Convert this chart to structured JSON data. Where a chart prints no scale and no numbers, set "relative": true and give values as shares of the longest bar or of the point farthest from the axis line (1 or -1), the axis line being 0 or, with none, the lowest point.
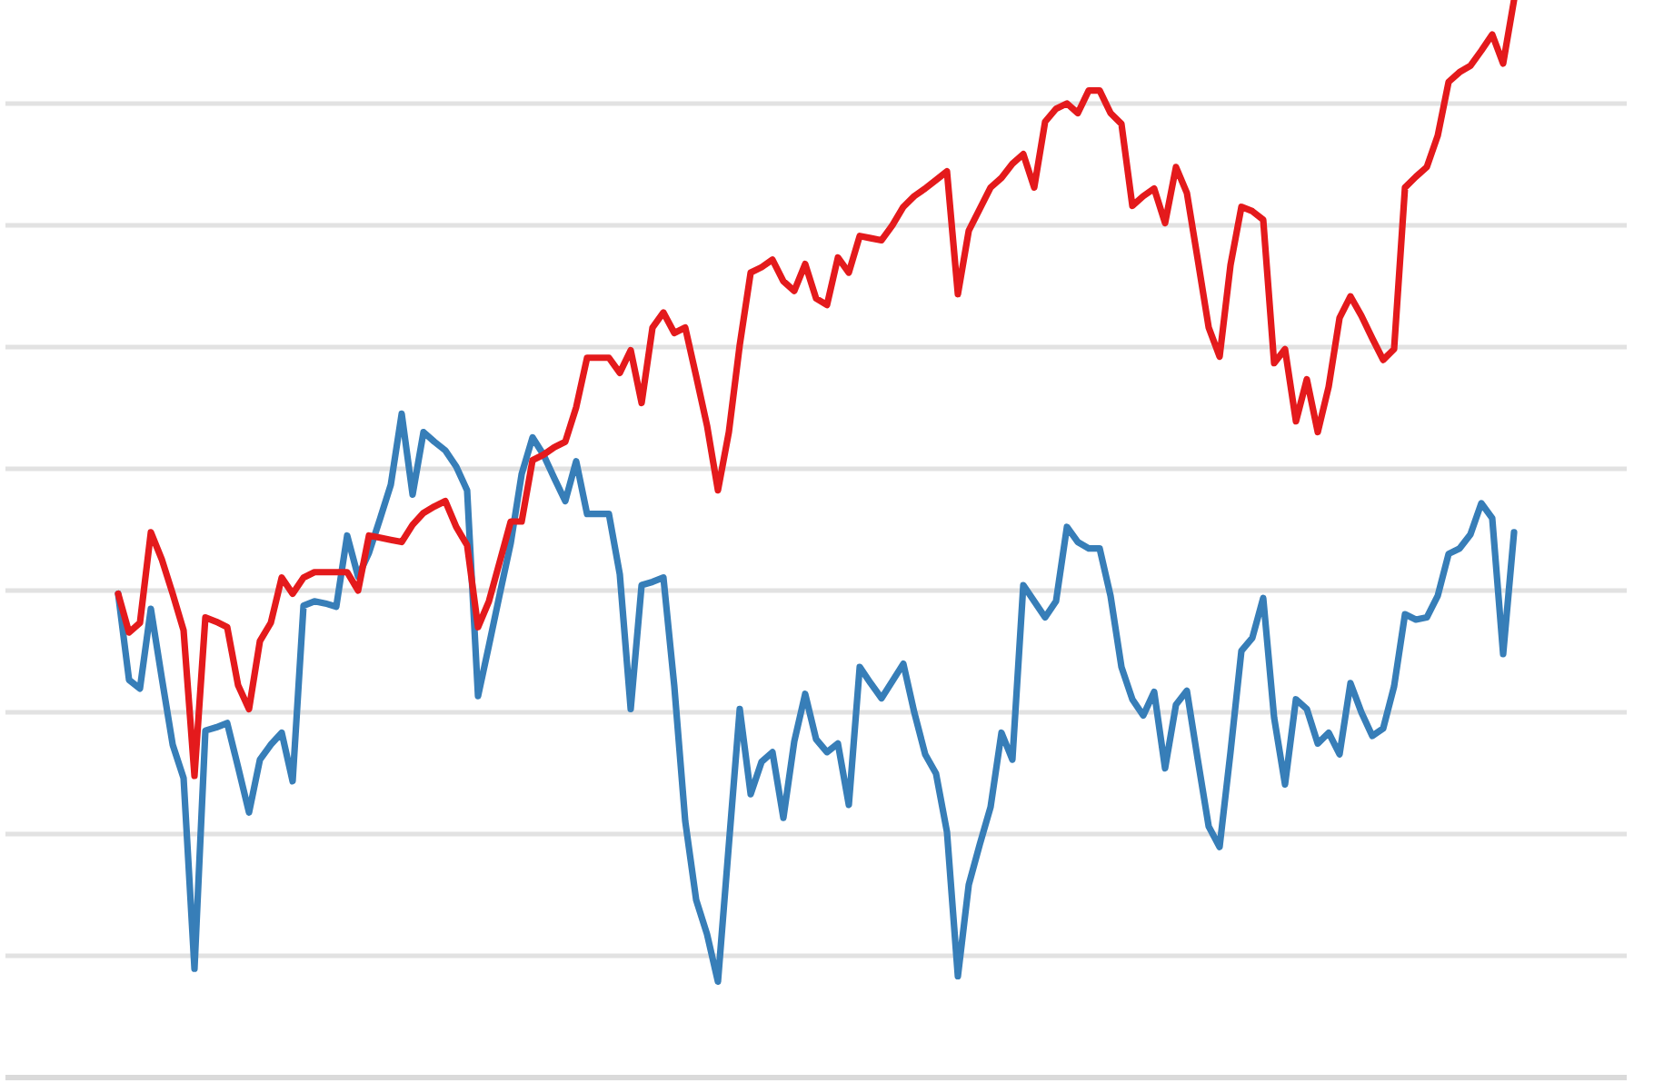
{
  "chart_data": {
    "type": "line",
    "relative": true,
    "grid": "y",
    "categories": [
      null,
      null,
      null,
      null,
      null,
      null,
      null,
      null,
      null,
      null,
      null,
      null,
      null,
      null,
      null,
      null,
      null,
      null,
      null,
      null,
      null,
      null,
      null,
      null,
      null,
      null,
      null,
      null,
      null,
      null,
      null,
      null,
      null,
      null,
      null,
      null,
      null,
      null,
      null,
      null,
      null,
      null,
      null,
      null,
      null,
      null,
      null,
      null,
      null,
      null,
      null,
      null,
      null,
      null,
      null,
      null,
      null,
      null,
      null,
      null,
      null,
      null,
      null,
      null,
      null,
      null,
      null,
      null,
      null,
      null,
      null,
      null,
      null,
      null,
      null,
      null,
      null,
      null,
      null,
      null,
      null,
      null,
      null,
      null,
      null,
      null,
      null,
      null,
      null,
      null,
      null,
      null,
      null,
      null,
      null,
      null,
      null,
      null,
      null,
      null,
      null,
      null,
      null,
      null,
      null,
      null,
      null,
      null,
      null,
      null,
      null,
      null,
      null,
      null,
      null,
      null,
      null,
      null,
      null,
      null,
      null,
      null,
      null,
      null,
      null,
      null,
      null,
      null,
      null
    ],
    "series": [
      {
        "color": "#377eb8",
        "values": [
          0.449,
          0.369,
          0.361,
          0.435,
          0.371,
          0.309,
          0.278,
          0.101,
          0.322,
          0.325,
          0.329,
          0.288,
          0.246,
          0.295,
          0.309,
          0.32,
          0.275,
          0.438,
          0.442,
          0.44,
          0.437,
          0.503,
          0.465,
          0.487,
          0.518,
          0.55,
          0.616,
          0.541,
          0.599,
          0.59,
          0.582,
          0.567,
          0.545,
          0.354,
          0.401,
          0.449,
          0.496,
          0.56,
          0.594,
          0.578,
          0.556,
          0.535,
          0.572,
          0.523,
          0.523,
          0.523,
          0.467,
          0.342,
          0.457,
          0.46,
          0.464,
          0.363,
          0.238,
          0.165,
          0.133,
          0.089,
          0.216,
          0.342,
          0.263,
          0.293,
          0.302,
          0.241,
          0.312,
          0.356,
          0.314,
          0.302,
          0.31,
          0.253,
          0.381,
          0.366,
          0.352,
          0.368,
          0.384,
          0.339,
          0.3,
          0.282,
          0.228,
          0.094,
          0.179,
          0.216,
          0.251,
          0.32,
          0.295,
          0.457,
          0.442,
          0.427,
          0.442,
          0.511,
          0.497,
          0.491,
          0.491,
          0.447,
          0.381,
          0.351,
          0.336,
          0.358,
          0.287,
          0.346,
          0.359,
          0.295,
          0.233,
          0.214,
          0.302,
          0.396,
          0.408,
          0.445,
          0.334,
          0.272,
          0.351,
          0.342,
          0.31,
          0.32,
          0.3,
          0.366,
          0.339,
          0.317,
          0.324,
          0.363,
          0.43,
          0.425,
          0.427,
          0.447,
          0.486,
          0.491,
          0.504,
          0.533,
          0.519,
          0.393,
          0.506
        ]
      },
      {
        "color": "#e41a1c",
        "values": [
          0.449,
          0.413,
          0.422,
          0.506,
          0.481,
          0.449,
          0.415,
          0.28,
          0.427,
          0.423,
          0.418,
          0.364,
          0.342,
          0.405,
          0.422,
          0.464,
          0.449,
          0.464,
          0.469,
          0.469,
          0.469,
          0.469,
          0.452,
          0.503,
          0.501,
          0.499,
          0.497,
          0.513,
          0.524,
          0.53,
          0.535,
          0.511,
          0.494,
          0.418,
          0.442,
          0.479,
          0.516,
          0.516,
          0.573,
          0.578,
          0.585,
          0.59,
          0.622,
          0.668,
          0.668,
          0.668,
          0.654,
          0.675,
          0.626,
          0.696,
          0.71,
          0.691,
          0.696,
          0.651,
          0.605,
          0.545,
          0.599,
          0.68,
          0.747,
          0.752,
          0.759,
          0.739,
          0.73,
          0.755,
          0.723,
          0.717,
          0.761,
          0.747,
          0.781,
          0.779,
          0.777,
          0.791,
          0.808,
          0.818,
          0.825,
          0.833,
          0.841,
          0.727,
          0.786,
          0.806,
          0.826,
          0.835,
          0.848,
          0.857,
          0.826,
          0.887,
          0.899,
          0.904,
          0.895,
          0.916,
          0.916,
          0.895,
          0.885,
          0.809,
          0.818,
          0.825,
          0.793,
          0.845,
          0.821,
          0.759,
          0.696,
          0.669,
          0.754,
          0.808,
          0.804,
          0.796,
          0.663,
          0.676,
          0.609,
          0.648,
          0.599,
          0.641,
          0.705,
          0.725,
          0.707,
          0.686,
          0.666,
          0.676,
          0.826,
          0.836,
          0.845,
          0.874,
          0.924,
          0.933,
          0.939,
          0.953,
          0.968,
          0.941,
          1
        ]
      }
    ]
  }
}
